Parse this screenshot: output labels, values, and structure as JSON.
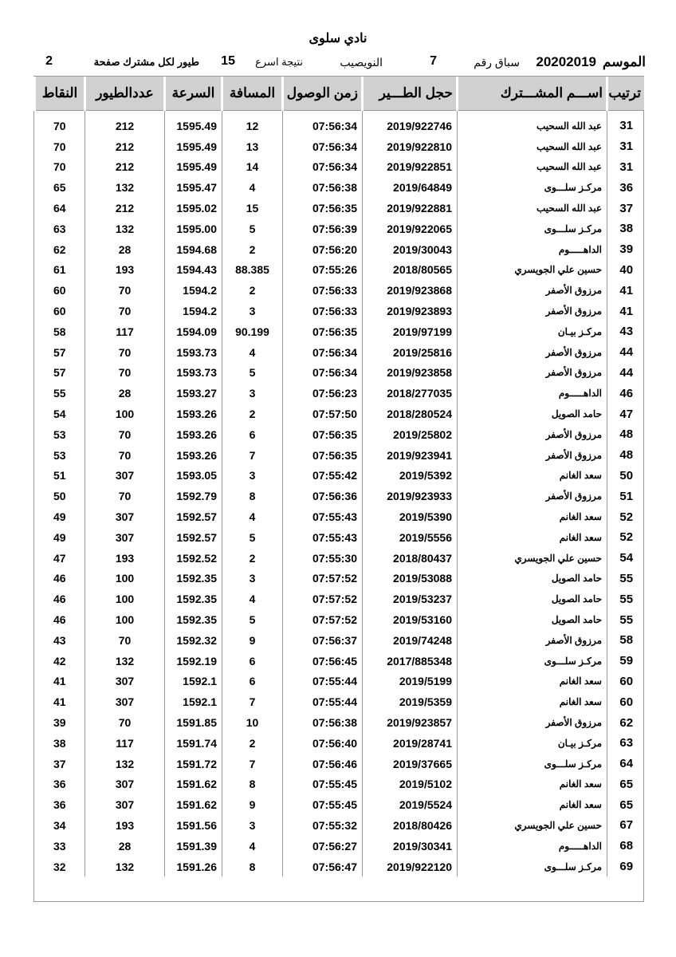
{
  "title": "نادي سلوى",
  "info": {
    "season_label": "الموسم",
    "season": "20202019",
    "race_label": "سباق رقم",
    "race_no": "7",
    "location": "النويصيب",
    "result_label": "نتيجة اسرع",
    "birds_count": "15",
    "per_label": "طيور لكل مشترك صفحة",
    "page": "2"
  },
  "columns": [
    "ترتيب",
    "اســـم المشـــترك",
    "حجل الطـــير",
    "زمن الوصول",
    "المسافة",
    "السرعة",
    "عددالطيور",
    "النقاط"
  ],
  "rows": [
    [
      "31",
      "عبد الله السحيب",
      "2019/922746",
      "07:56:34",
      "12",
      "1595.49",
      "212",
      "70"
    ],
    [
      "31",
      "عبد الله السحيب",
      "2019/922810",
      "07:56:34",
      "13",
      "1595.49",
      "212",
      "70"
    ],
    [
      "31",
      "عبد الله السحيب",
      "2019/922851",
      "07:56:34",
      "14",
      "1595.49",
      "212",
      "70"
    ],
    [
      "36",
      "مركـز سلـــوى",
      "2019/64849",
      "07:56:38",
      "4",
      "1595.47",
      "132",
      "65"
    ],
    [
      "37",
      "عبد الله السحيب",
      "2019/922881",
      "07:56:35",
      "15",
      "1595.02",
      "212",
      "64"
    ],
    [
      "38",
      "مركـز سلـــوى",
      "2019/922065",
      "07:56:39",
      "5",
      "1595.00",
      "132",
      "63"
    ],
    [
      "39",
      "الداهـــــوم",
      "2019/30043",
      "07:56:20",
      "2",
      "1594.68",
      "28",
      "62"
    ],
    [
      "40",
      "حسين علي الجويسري",
      "2018/80565",
      "07:55:26",
      "88.385",
      "1594.43",
      "193",
      "61"
    ],
    [
      "41",
      "مرزوق الأصفر",
      "2019/923868",
      "07:56:33",
      "2",
      "1594.2",
      "70",
      "60"
    ],
    [
      "41",
      "مرزوق الأصفر",
      "2019/923893",
      "07:56:33",
      "3",
      "1594.2",
      "70",
      "60"
    ],
    [
      "43",
      "مركـز بيـان",
      "2019/97199",
      "07:56:35",
      "90.199",
      "1594.09",
      "117",
      "58"
    ],
    [
      "44",
      "مرزوق الأصفر",
      "2019/25816",
      "07:56:34",
      "4",
      "1593.73",
      "70",
      "57"
    ],
    [
      "44",
      "مرزوق الأصفر",
      "2019/923858",
      "07:56:34",
      "5",
      "1593.73",
      "70",
      "57"
    ],
    [
      "46",
      "الداهـــــوم",
      "2018/277035",
      "07:56:23",
      "3",
      "1593.27",
      "28",
      "55"
    ],
    [
      "47",
      "حامد الصويل",
      "2018/280524",
      "07:57:50",
      "2",
      "1593.26",
      "100",
      "54"
    ],
    [
      "48",
      "مرزوق الأصفر",
      "2019/25802",
      "07:56:35",
      "6",
      "1593.26",
      "70",
      "53"
    ],
    [
      "48",
      "مرزوق الأصفر",
      "2019/923941",
      "07:56:35",
      "7",
      "1593.26",
      "70",
      "53"
    ],
    [
      "50",
      "سعد الغانم",
      "2019/5392",
      "07:55:42",
      "3",
      "1593.05",
      "307",
      "51"
    ],
    [
      "51",
      "مرزوق الأصفر",
      "2019/923933",
      "07:56:36",
      "8",
      "1592.79",
      "70",
      "50"
    ],
    [
      "52",
      "سعد الغانم",
      "2019/5390",
      "07:55:43",
      "4",
      "1592.57",
      "307",
      "49"
    ],
    [
      "52",
      "سعد الغانم",
      "2019/5556",
      "07:55:43",
      "5",
      "1592.57",
      "307",
      "49"
    ],
    [
      "54",
      "حسين علي الجويسري",
      "2018/80437",
      "07:55:30",
      "2",
      "1592.52",
      "193",
      "47"
    ],
    [
      "55",
      "حامد الصويل",
      "2019/53088",
      "07:57:52",
      "3",
      "1592.35",
      "100",
      "46"
    ],
    [
      "55",
      "حامد الصويل",
      "2019/53237",
      "07:57:52",
      "4",
      "1592.35",
      "100",
      "46"
    ],
    [
      "55",
      "حامد الصويل",
      "2019/53160",
      "07:57:52",
      "5",
      "1592.35",
      "100",
      "46"
    ],
    [
      "58",
      "مرزوق الأصفر",
      "2019/74248",
      "07:56:37",
      "9",
      "1592.32",
      "70",
      "43"
    ],
    [
      "59",
      "مركـز سلـــوى",
      "2017/885348",
      "07:56:45",
      "6",
      "1592.19",
      "132",
      "42"
    ],
    [
      "60",
      "سعد الغانم",
      "2019/5199",
      "07:55:44",
      "6",
      "1592.1",
      "307",
      "41"
    ],
    [
      "60",
      "سعد الغانم",
      "2019/5359",
      "07:55:44",
      "7",
      "1592.1",
      "307",
      "41"
    ],
    [
      "62",
      "مرزوق الأصفر",
      "2019/923857",
      "07:56:38",
      "10",
      "1591.85",
      "70",
      "39"
    ],
    [
      "63",
      "مركـز بيـان",
      "2019/28741",
      "07:56:40",
      "2",
      "1591.74",
      "117",
      "38"
    ],
    [
      "64",
      "مركـز سلـــوى",
      "2019/37665",
      "07:56:46",
      "7",
      "1591.72",
      "132",
      "37"
    ],
    [
      "65",
      "سعد الغانم",
      "2019/5102",
      "07:55:45",
      "8",
      "1591.62",
      "307",
      "36"
    ],
    [
      "65",
      "سعد الغانم",
      "2019/5524",
      "07:55:45",
      "9",
      "1591.62",
      "307",
      "36"
    ],
    [
      "67",
      "حسين علي الجويسري",
      "2018/80426",
      "07:55:32",
      "3",
      "1591.56",
      "193",
      "34"
    ],
    [
      "68",
      "الداهـــــوم",
      "2019/30341",
      "07:56:27",
      "4",
      "1591.39",
      "28",
      "33"
    ],
    [
      "69",
      "مركـز سلـــوى",
      "2019/922120",
      "07:56:47",
      "8",
      "1591.26",
      "132",
      "32"
    ]
  ]
}
